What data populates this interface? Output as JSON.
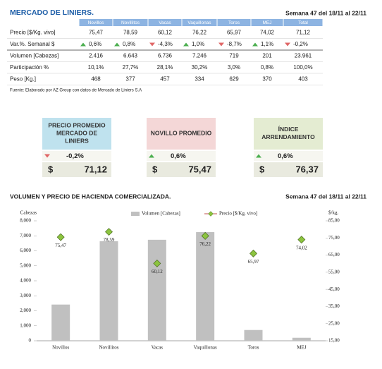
{
  "header": {
    "title": "MERCADO DE LINIERS.",
    "week": "Semana 47 del 18/11 al 22/11"
  },
  "table": {
    "columns": [
      "Novillos",
      "Novillitos",
      "Vacas",
      "Vaquillonas",
      "Toros",
      "MEJ",
      "Total"
    ],
    "rows": [
      [
        "Precio [$/Kg. vivo]",
        "75,47",
        "78,59",
        "60,12",
        "76,22",
        "65,97",
        "74,02",
        "71,12"
      ],
      [
        "Var.%. Semanal $",
        "0,6%",
        "0,8%",
        "-4,3%",
        "1,0%",
        "-8,7%",
        "1,1%",
        "-0,2%"
      ],
      [
        "Volumen [Cabezas]",
        "2.416",
        "6.643",
        "6.736",
        "7.246",
        "719",
        "201",
        "23.961"
      ],
      [
        "Participación %",
        "10,1%",
        "27,7%",
        "28,1%",
        "30,2%",
        "3,0%",
        "0,8%",
        "100,0%"
      ],
      [
        "Peso  [Kg.]",
        "468",
        "377",
        "457",
        "334",
        "629",
        "370",
        "403"
      ]
    ],
    "source": "Fuente: Elaborado por AZ Group con datos de Mercado de Liniers S.A"
  },
  "cards": [
    {
      "title": "PRECIO PROMEDIO MERCADO DE LINIERS",
      "change": "-0,2%",
      "currency": "$",
      "value": "71,12",
      "color": "#bfe2ee"
    },
    {
      "title": "NOVILLO PROMEDIO",
      "change": "0,6%",
      "currency": "$",
      "value": "75,47",
      "color": "#f4d7d7"
    },
    {
      "title": "ÍNDICE ARRENDAMIENTO",
      "change": "0,6%",
      "currency": "$",
      "value": "76,37",
      "color": "#e4ecd2"
    }
  ],
  "chart_data": {
    "type": "bar",
    "title": "VOLUMEN Y PRECIO DE HACIENDA COMERCIALIZADA.",
    "subtitle": "Semana 47 del 18/11 al 22/11",
    "y_label": "Cabezas",
    "y2_label": "$/kg.",
    "categories": [
      "Novillos",
      "Novillitos",
      "Vacas",
      "Vaquillonas",
      "Toros",
      "MEJ"
    ],
    "series": [
      {
        "name": "Volumen [Cabezas]",
        "type": "bar",
        "color": "#c0c0c0",
        "values": [
          2416,
          6643,
          6736,
          7246,
          719,
          201
        ]
      },
      {
        "name": "Precio [$/Kg. vivo]",
        "type": "marker",
        "axis": "y2",
        "color": "#8cc43f",
        "values": [
          75.47,
          78.59,
          60.12,
          76.22,
          65.97,
          74.02
        ],
        "value_labels": [
          "75,47",
          "78,59",
          "60,12",
          "76,22",
          "65,97",
          "74,02"
        ]
      }
    ],
    "ylim": [
      0,
      8000
    ],
    "yticks": [
      0,
      {
        "value": 1000,
        "label": "1,000"
      },
      {
        "value": 2000,
        "label": "2,000"
      },
      {
        "value": 3000,
        "label": "3,000"
      },
      {
        "value": 4000,
        "label": "4,000"
      },
      {
        "value": 5000,
        "label": "5,000"
      },
      {
        "value": 6000,
        "label": "6,000"
      },
      {
        "value": 7000,
        "label": "7,000"
      },
      {
        "value": 8000,
        "label": "8,000"
      }
    ],
    "y2lim": [
      15,
      85
    ],
    "y2ticks": [
      {
        "value": 15,
        "label": "15,00"
      },
      {
        "value": 25,
        "label": "25,00"
      },
      {
        "value": 35,
        "label": "35,00"
      },
      {
        "value": 45,
        "label": "45,00"
      },
      {
        "value": 55,
        "label": "55,00"
      },
      {
        "value": 65,
        "label": "65,00"
      },
      {
        "value": 75,
        "label": "75,00"
      },
      {
        "value": 85,
        "label": "85,00"
      }
    ]
  }
}
